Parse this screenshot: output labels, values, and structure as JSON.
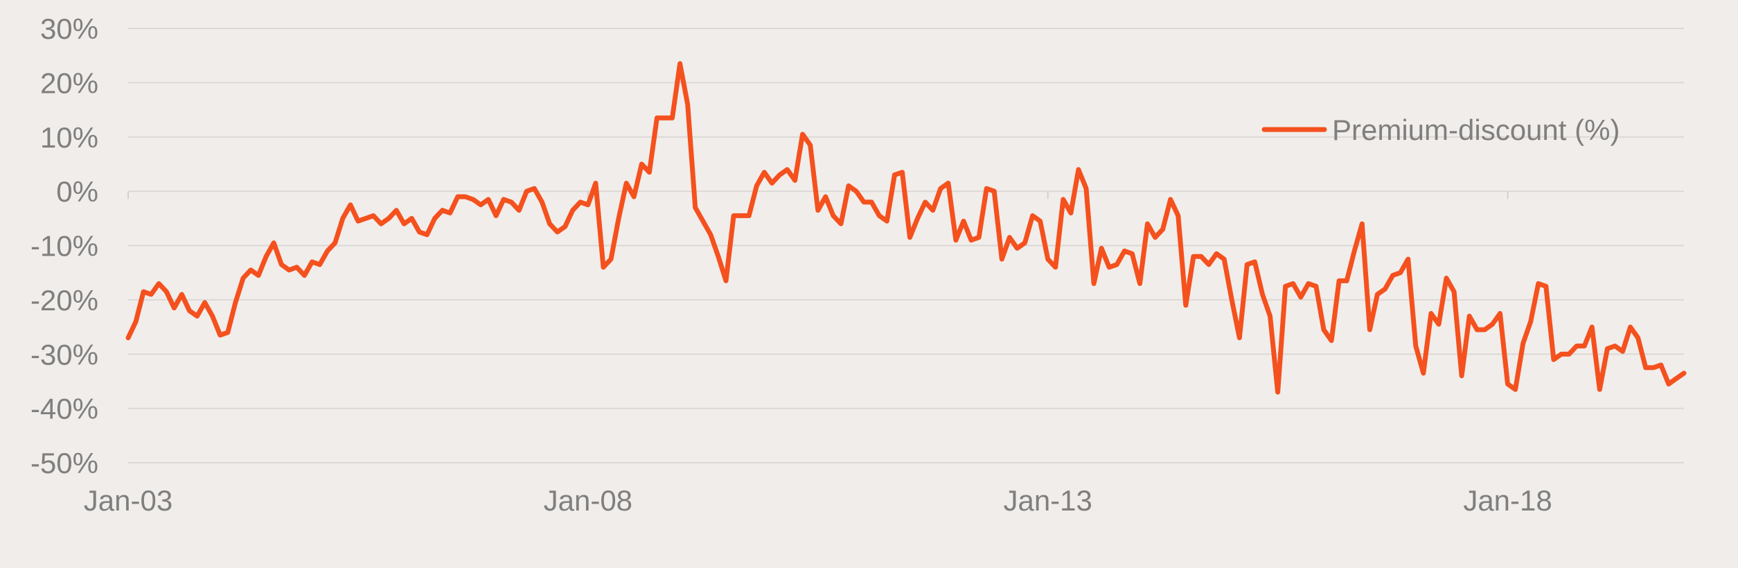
{
  "chart_data": {
    "type": "line",
    "title": "",
    "xlabel": "",
    "ylabel": "",
    "ylim": [
      -50,
      30
    ],
    "y_ticks": [
      "30%",
      "20%",
      "10%",
      "0%",
      "-10%",
      "-20%",
      "-30%",
      "-40%",
      "-50%"
    ],
    "x_ticks": [
      "Jan-03",
      "Jan-08",
      "Jan-13",
      "Jan-18"
    ],
    "x_range": [
      "2003-01",
      "2019-12"
    ],
    "grid": "horizontal",
    "legend_position": "top-right",
    "series": [
      {
        "name": "Premium-discount (%)",
        "color": "#f4511e",
        "points": [
          [
            "2003-01",
            -27
          ],
          [
            "2003-02",
            -24
          ],
          [
            "2003-03",
            -18.5
          ],
          [
            "2003-04",
            -19
          ],
          [
            "2003-05",
            -17
          ],
          [
            "2003-06",
            -18.5
          ],
          [
            "2003-07",
            -21.5
          ],
          [
            "2003-08",
            -19
          ],
          [
            "2003-09",
            -22
          ],
          [
            "2003-10",
            -23
          ],
          [
            "2003-11",
            -20.5
          ],
          [
            "2003-12",
            -23
          ],
          [
            "2004-01",
            -26.5
          ],
          [
            "2004-02",
            -26
          ],
          [
            "2004-03",
            -20.5
          ],
          [
            "2004-04",
            -16
          ],
          [
            "2004-05",
            -14.5
          ],
          [
            "2004-06",
            -15.5
          ],
          [
            "2004-07",
            -12
          ],
          [
            "2004-08",
            -9.5
          ],
          [
            "2004-09",
            -13.5
          ],
          [
            "2004-10",
            -14.5
          ],
          [
            "2004-11",
            -14
          ],
          [
            "2004-12",
            -15.5
          ],
          [
            "2005-01",
            -13
          ],
          [
            "2005-02",
            -13.5
          ],
          [
            "2005-03",
            -11
          ],
          [
            "2005-04",
            -9.5
          ],
          [
            "2005-05",
            -5
          ],
          [
            "2005-06",
            -2.5
          ],
          [
            "2005-07",
            -5.5
          ],
          [
            "2005-08",
            -5
          ],
          [
            "2005-09",
            -4.5
          ],
          [
            "2005-10",
            -6
          ],
          [
            "2005-11",
            -5
          ],
          [
            "2005-12",
            -3.5
          ],
          [
            "2006-01",
            -6
          ],
          [
            "2006-02",
            -5
          ],
          [
            "2006-03",
            -7.5
          ],
          [
            "2006-04",
            -8
          ],
          [
            "2006-05",
            -5
          ],
          [
            "2006-06",
            -3.5
          ],
          [
            "2006-07",
            -4
          ],
          [
            "2006-08",
            -1
          ],
          [
            "2006-09",
            -1
          ],
          [
            "2006-10",
            -1.5
          ],
          [
            "2006-11",
            -2.5
          ],
          [
            "2006-12",
            -1.5
          ],
          [
            "2007-01",
            -4.5
          ],
          [
            "2007-02",
            -1.5
          ],
          [
            "2007-03",
            -2
          ],
          [
            "2007-04",
            -3.5
          ],
          [
            "2007-05",
            0
          ],
          [
            "2007-06",
            0.5
          ],
          [
            "2007-07",
            -2
          ],
          [
            "2007-08",
            -6
          ],
          [
            "2007-09",
            -7.5
          ],
          [
            "2007-10",
            -6.5
          ],
          [
            "2007-11",
            -3.5
          ],
          [
            "2007-12",
            -2
          ],
          [
            "2008-01",
            -2.5
          ],
          [
            "2008-02",
            1.5
          ],
          [
            "2008-03",
            -14
          ],
          [
            "2008-04",
            -12.5
          ],
          [
            "2008-05",
            -5
          ],
          [
            "2008-06",
            1.5
          ],
          [
            "2008-07",
            -1
          ],
          [
            "2008-08",
            5
          ],
          [
            "2008-09",
            3.5
          ],
          [
            "2008-10",
            13.5
          ],
          [
            "2008-11",
            13.5
          ],
          [
            "2008-12",
            13.5
          ],
          [
            "2009-01",
            23.5
          ],
          [
            "2009-02",
            16
          ],
          [
            "2009-03",
            -3
          ],
          [
            "2009-04",
            -5.5
          ],
          [
            "2009-05",
            -8
          ],
          [
            "2009-06",
            -12
          ],
          [
            "2009-07",
            -16.5
          ],
          [
            "2009-08",
            -4.5
          ],
          [
            "2009-09",
            -4.5
          ],
          [
            "2009-10",
            -4.5
          ],
          [
            "2009-11",
            1
          ],
          [
            "2009-12",
            3.5
          ],
          [
            "2010-01",
            1.5
          ],
          [
            "2010-02",
            3
          ],
          [
            "2010-03",
            4
          ],
          [
            "2010-04",
            2
          ],
          [
            "2010-05",
            10.5
          ],
          [
            "2010-06",
            8.5
          ],
          [
            "2010-07",
            -3.5
          ],
          [
            "2010-08",
            -1
          ],
          [
            "2010-09",
            -4.5
          ],
          [
            "2010-10",
            -6
          ],
          [
            "2010-11",
            1
          ],
          [
            "2010-12",
            0
          ],
          [
            "2011-01",
            -2
          ],
          [
            "2011-02",
            -2
          ],
          [
            "2011-03",
            -4.5
          ],
          [
            "2011-04",
            -5.5
          ],
          [
            "2011-05",
            3
          ],
          [
            "2011-06",
            3.5
          ],
          [
            "2011-07",
            -8.5
          ],
          [
            "2011-08",
            -5
          ],
          [
            "2011-09",
            -2
          ],
          [
            "2011-10",
            -3.5
          ],
          [
            "2011-11",
            0.5
          ],
          [
            "2011-12",
            1.5
          ],
          [
            "2012-01",
            -9
          ],
          [
            "2012-02",
            -5.5
          ],
          [
            "2012-03",
            -9
          ],
          [
            "2012-04",
            -8.5
          ],
          [
            "2012-05",
            0.5
          ],
          [
            "2012-06",
            0
          ],
          [
            "2012-07",
            -12.5
          ],
          [
            "2012-08",
            -8.5
          ],
          [
            "2012-09",
            -10.5
          ],
          [
            "2012-10",
            -9.5
          ],
          [
            "2012-11",
            -4.5
          ],
          [
            "2012-12",
            -5.5
          ],
          [
            "2013-01",
            -12.5
          ],
          [
            "2013-02",
            -14
          ],
          [
            "2013-03",
            -1.5
          ],
          [
            "2013-04",
            -4
          ],
          [
            "2013-05",
            4
          ],
          [
            "2013-06",
            0.5
          ],
          [
            "2013-07",
            -17
          ],
          [
            "2013-08",
            -10.5
          ],
          [
            "2013-09",
            -14
          ],
          [
            "2013-10",
            -13.5
          ],
          [
            "2013-11",
            -11
          ],
          [
            "2013-12",
            -11.5
          ],
          [
            "2014-01",
            -17
          ],
          [
            "2014-02",
            -6
          ],
          [
            "2014-03",
            -8.5
          ],
          [
            "2014-04",
            -7
          ],
          [
            "2014-05",
            -1.5
          ],
          [
            "2014-06",
            -4.5
          ],
          [
            "2014-07",
            -21
          ],
          [
            "2014-08",
            -12
          ],
          [
            "2014-09",
            -12
          ],
          [
            "2014-10",
            -13.5
          ],
          [
            "2014-11",
            -11.5
          ],
          [
            "2014-12",
            -12.5
          ],
          [
            "2015-01",
            -20
          ],
          [
            "2015-02",
            -27
          ],
          [
            "2015-03",
            -13.5
          ],
          [
            "2015-04",
            -13
          ],
          [
            "2015-05",
            -19
          ],
          [
            "2015-06",
            -23
          ],
          [
            "2015-07",
            -37
          ],
          [
            "2015-08",
            -17.5
          ],
          [
            "2015-09",
            -17
          ],
          [
            "2015-10",
            -19.5
          ],
          [
            "2015-11",
            -17
          ],
          [
            "2015-12",
            -17.5
          ],
          [
            "2016-01",
            -25.5
          ],
          [
            "2016-02",
            -27.5
          ],
          [
            "2016-03",
            -16.5
          ],
          [
            "2016-04",
            -16.5
          ],
          [
            "2016-05",
            -11
          ],
          [
            "2016-06",
            -6
          ],
          [
            "2016-07",
            -25.5
          ],
          [
            "2016-08",
            -19
          ],
          [
            "2016-09",
            -18
          ],
          [
            "2016-10",
            -15.5
          ],
          [
            "2016-11",
            -15
          ],
          [
            "2016-12",
            -12.5
          ],
          [
            "2017-01",
            -28.5
          ],
          [
            "2017-02",
            -33.5
          ],
          [
            "2017-03",
            -22.5
          ],
          [
            "2017-04",
            -24.5
          ],
          [
            "2017-05",
            -16
          ],
          [
            "2017-06",
            -18.5
          ],
          [
            "2017-07",
            -34
          ],
          [
            "2017-08",
            -23
          ],
          [
            "2017-09",
            -25.5
          ],
          [
            "2017-10",
            -25.5
          ],
          [
            "2017-11",
            -24.5
          ],
          [
            "2017-12",
            -22.5
          ],
          [
            "2018-01",
            -35.5
          ],
          [
            "2018-02",
            -36.5
          ],
          [
            "2018-03",
            -28
          ],
          [
            "2018-04",
            -24
          ],
          [
            "2018-05",
            -17
          ],
          [
            "2018-06",
            -17.5
          ],
          [
            "2018-07",
            -31
          ],
          [
            "2018-08",
            -30
          ],
          [
            "2018-09",
            -30
          ],
          [
            "2018-10",
            -28.5
          ],
          [
            "2018-11",
            -28.5
          ],
          [
            "2018-12",
            -25
          ],
          [
            "2019-01",
            -36.5
          ],
          [
            "2019-02",
            -29
          ],
          [
            "2019-03",
            -28.5
          ],
          [
            "2019-04",
            -29.5
          ],
          [
            "2019-05",
            -25
          ],
          [
            "2019-06",
            -27
          ],
          [
            "2019-07",
            -32.5
          ],
          [
            "2019-08",
            -32.5
          ],
          [
            "2019-09",
            -32
          ],
          [
            "2019-10",
            -35.5
          ],
          [
            "2019-11",
            -34.5
          ],
          [
            "2019-12",
            -33.5
          ]
        ]
      }
    ]
  }
}
